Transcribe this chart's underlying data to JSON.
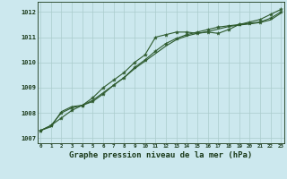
{
  "title": "Graphe pression niveau de la mer (hPa)",
  "xlabel_hours": [
    0,
    1,
    2,
    3,
    4,
    5,
    6,
    7,
    8,
    9,
    10,
    11,
    12,
    13,
    14,
    15,
    16,
    17,
    18,
    19,
    20,
    21,
    22,
    23
  ],
  "line1": [
    1007.3,
    1007.5,
    1007.8,
    1008.1,
    1008.3,
    1008.6,
    1009.0,
    1009.3,
    1009.6,
    1010.0,
    1010.3,
    1011.0,
    1011.1,
    1011.2,
    1011.2,
    1011.15,
    1011.2,
    1011.15,
    1011.3,
    1011.5,
    1011.6,
    1011.7,
    1011.9,
    1012.1
  ],
  "line2": [
    1007.3,
    1007.5,
    1008.0,
    1008.2,
    1008.3,
    1008.45,
    1008.75,
    1009.1,
    1009.4,
    1009.8,
    1010.1,
    1010.45,
    1010.75,
    1010.95,
    1011.1,
    1011.2,
    1011.3,
    1011.4,
    1011.45,
    1011.5,
    1011.55,
    1011.6,
    1011.75,
    1012.0
  ],
  "line3": [
    1007.3,
    1007.45,
    1008.05,
    1008.25,
    1008.3,
    1008.5,
    1008.8,
    1009.1,
    1009.4,
    1009.75,
    1010.05,
    1010.35,
    1010.65,
    1010.9,
    1011.05,
    1011.15,
    1011.22,
    1011.32,
    1011.42,
    1011.48,
    1011.52,
    1011.58,
    1011.68,
    1011.95
  ],
  "ylim": [
    1006.8,
    1012.4
  ],
  "yticks": [
    1007,
    1008,
    1009,
    1010,
    1011,
    1012
  ],
  "bg_color": "#cce8ee",
  "line_color": "#2d5a2d",
  "grid_color": "#aacccc",
  "title_color": "#1a3a1a",
  "title_fontsize": 6.5,
  "marker": "*",
  "marker_size": 3.0,
  "linewidth": 0.8
}
